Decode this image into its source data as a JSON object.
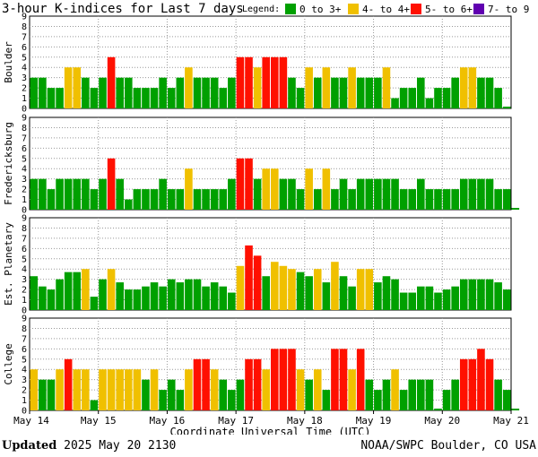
{
  "footer": {
    "updated_label": "Updated",
    "updated_value": "2025 May 20 2130",
    "source": "NOAA/SWPC Boulder, CO USA"
  },
  "chart_data": {
    "type": "bar",
    "title": "3-hour K-indices for Last 7 days",
    "xlabel": "Coordinate Universal Time (UTC)",
    "x_tick_labels": [
      "May 14",
      "May 15",
      "May 16",
      "May 17",
      "May 18",
      "May 19",
      "May 20",
      "May 21"
    ],
    "ylim": [
      0,
      9
    ],
    "y_ticks": [
      0,
      1,
      2,
      3,
      4,
      5,
      6,
      7,
      8,
      9
    ],
    "grid": true,
    "legend_label": "Legend:",
    "legend": [
      {
        "label": "0 to 3+",
        "color": "#00a000",
        "range": [
          0,
          3.99
        ]
      },
      {
        "label": "4- to 4+",
        "color": "#f0c000",
        "range": [
          4,
          4.99
        ]
      },
      {
        "label": "5- to 6+",
        "color": "#ff1000",
        "range": [
          5,
          6.99
        ]
      },
      {
        "label": "7- to 9",
        "color": "#6000b0",
        "range": [
          7,
          9
        ]
      }
    ],
    "periods_per_day": 8,
    "series": [
      {
        "name": "Boulder",
        "values": [
          3,
          3,
          2,
          2,
          4,
          4,
          3,
          2,
          3,
          5,
          3,
          3,
          2,
          2,
          2,
          3,
          2,
          3,
          4,
          3,
          3,
          3,
          2,
          3,
          5,
          5,
          4,
          5,
          5,
          5,
          3,
          2,
          4,
          3,
          4,
          3,
          3,
          4,
          3,
          3,
          3,
          4,
          1,
          2,
          2,
          3,
          1,
          2,
          2,
          3,
          4,
          4,
          3,
          3,
          2,
          0
        ]
      },
      {
        "name": "Fredericksburg",
        "values": [
          3,
          3,
          2,
          3,
          3,
          3,
          3,
          2,
          3,
          5,
          3,
          1,
          2,
          2,
          2,
          3,
          2,
          2,
          4,
          2,
          2,
          2,
          2,
          3,
          5,
          5,
          3,
          4,
          4,
          3,
          3,
          2,
          4,
          2,
          4,
          2,
          3,
          2,
          3,
          3,
          3,
          3,
          3,
          2,
          2,
          3,
          2,
          2,
          2,
          2,
          3,
          3,
          3,
          3,
          2,
          2,
          0
        ]
      },
      {
        "name": "Est. Planetary",
        "values": [
          3.3,
          2.3,
          2,
          3,
          3.7,
          3.7,
          4,
          1.3,
          3,
          4,
          2.7,
          2,
          2,
          2.3,
          2.7,
          2.3,
          3,
          2.7,
          3,
          3,
          2.3,
          2.7,
          2.3,
          1.7,
          4.3,
          6.3,
          5.3,
          3.3,
          4.7,
          4.3,
          4.0,
          3.7,
          3.3,
          4.0,
          2.7,
          4.7,
          3.3,
          2.3,
          4.0,
          4.0,
          2.7,
          3.3,
          3.0,
          1.7,
          1.7,
          2.3,
          2.3,
          1.7,
          2.0,
          2.3,
          3.0,
          3.0,
          3.0,
          3.0,
          2.7,
          2.0
        ]
      },
      {
        "name": "College",
        "values": [
          4,
          3,
          3,
          4,
          5,
          4,
          4,
          1,
          4,
          4,
          4,
          4,
          4,
          3,
          4,
          2,
          3,
          2,
          4,
          5,
          5,
          4,
          3,
          2,
          3,
          5,
          5,
          4,
          6,
          6,
          6,
          4,
          3,
          4,
          2,
          6,
          6,
          4,
          6,
          3,
          2,
          3,
          4,
          2,
          3,
          3,
          3,
          0,
          2,
          3,
          5,
          5,
          6,
          5,
          3,
          2,
          0
        ]
      }
    ]
  }
}
